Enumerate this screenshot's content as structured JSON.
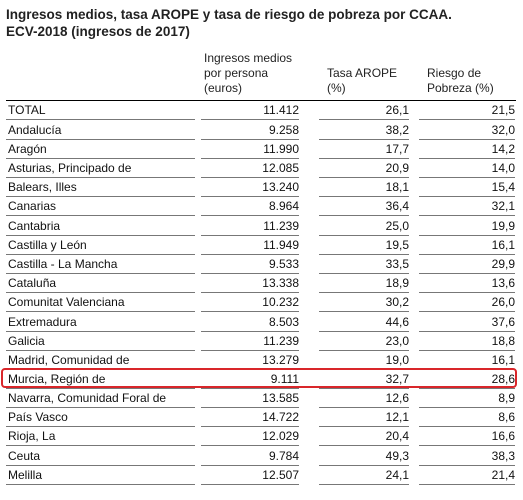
{
  "title": {
    "line1": "Ingresos medios, tasa AROPE y tasa de riesgo de pobreza por CCAA.",
    "line2": "ECV-2018 (ingresos de 2017)"
  },
  "headers": {
    "col1": [
      "Ingresos medios",
      "por persona",
      "(euros)"
    ],
    "col2": [
      "Tasa AROPE",
      "(%)"
    ],
    "col3": [
      "Riesgo de",
      "Pobreza (%)"
    ]
  },
  "highlight_color": "#d9262a",
  "highlighted_row": "Murcia, Región de",
  "rows": [
    {
      "name": "TOTAL",
      "ingresos": "11.412",
      "arope": "26,1",
      "riesgo": "21,5"
    },
    {
      "name": "Andalucía",
      "ingresos": "9.258",
      "arope": "38,2",
      "riesgo": "32,0"
    },
    {
      "name": "Aragón",
      "ingresos": "11.990",
      "arope": "17,7",
      "riesgo": "14,2"
    },
    {
      "name": "Asturias, Principado de",
      "ingresos": "12.085",
      "arope": "20,9",
      "riesgo": "14,0"
    },
    {
      "name": "Balears, Illes",
      "ingresos": "13.240",
      "arope": "18,1",
      "riesgo": "15,4"
    },
    {
      "name": "Canarias",
      "ingresos": "8.964",
      "arope": "36,4",
      "riesgo": "32,1"
    },
    {
      "name": "Cantabria",
      "ingresos": "11.239",
      "arope": "25,0",
      "riesgo": "19,9"
    },
    {
      "name": "Castilla y León",
      "ingresos": "11.949",
      "arope": "19,5",
      "riesgo": "16,1"
    },
    {
      "name": "Castilla - La Mancha",
      "ingresos": "9.533",
      "arope": "33,5",
      "riesgo": "29,9"
    },
    {
      "name": "Cataluña",
      "ingresos": "13.338",
      "arope": "18,9",
      "riesgo": "13,6"
    },
    {
      "name": "Comunitat Valenciana",
      "ingresos": "10.232",
      "arope": "30,2",
      "riesgo": "26,0"
    },
    {
      "name": "Extremadura",
      "ingresos": "8.503",
      "arope": "44,6",
      "riesgo": "37,6"
    },
    {
      "name": "Galicia",
      "ingresos": "11.239",
      "arope": "23,0",
      "riesgo": "18,8"
    },
    {
      "name": "Madrid, Comunidad de",
      "ingresos": "13.279",
      "arope": "19,0",
      "riesgo": "16,1"
    },
    {
      "name": "Murcia, Región de",
      "ingresos": "9.111",
      "arope": "32,7",
      "riesgo": "28,6"
    },
    {
      "name": "Navarra, Comunidad Foral de",
      "ingresos": "13.585",
      "arope": "12,6",
      "riesgo": "8,9"
    },
    {
      "name": "País Vasco",
      "ingresos": "14.722",
      "arope": "12,1",
      "riesgo": "8,6"
    },
    {
      "name": "Rioja, La",
      "ingresos": "12.029",
      "arope": "20,4",
      "riesgo": "16,6"
    },
    {
      "name": "Ceuta",
      "ingresos": "9.784",
      "arope": "49,3",
      "riesgo": "38,3"
    },
    {
      "name": "Melilla",
      "ingresos": "12.507",
      "arope": "24,1",
      "riesgo": "21,4"
    }
  ]
}
